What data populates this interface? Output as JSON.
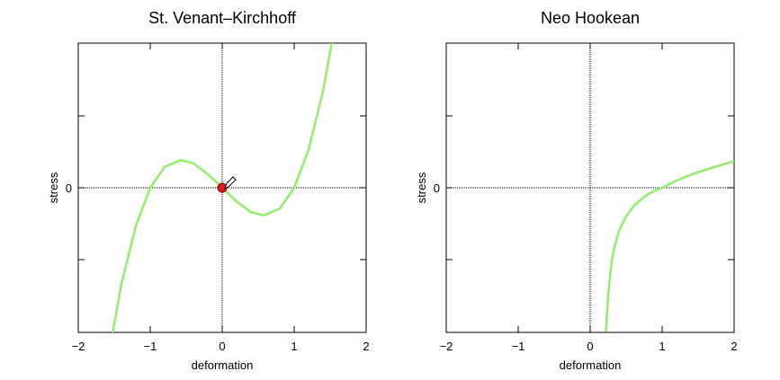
{
  "chart_data": [
    {
      "type": "line",
      "title": "St. Venant–Kirchhoff",
      "xlabel": "deformation",
      "ylabel": "stress",
      "xlim": [
        -2,
        2
      ],
      "x_ticks": [
        "−2",
        "−1",
        "0",
        "1",
        "2"
      ],
      "y_ticks": [
        "0"
      ],
      "grid": "dotted lines at x=0 and y=0",
      "series": [
        {
          "color": "#90ee6a",
          "x": [
            -1.55,
            -1.4,
            -1.2,
            -1.0,
            -0.8,
            -0.577,
            -0.4,
            -0.2,
            0.0,
            0.2,
            0.4,
            0.577,
            0.8,
            1.0,
            1.2,
            1.4,
            1.55
          ],
          "y": [
            -2.17,
            -1.34,
            -0.53,
            0.0,
            0.29,
            0.385,
            0.34,
            0.19,
            0.0,
            -0.19,
            -0.34,
            -0.385,
            -0.29,
            0.0,
            0.53,
            1.34,
            2.17
          ]
        }
      ],
      "marker": {
        "x": 0,
        "y": 0,
        "color": "#dd1c1c",
        "icon": "pencil-cursor-icon"
      }
    },
    {
      "type": "line",
      "title": "Neo Hookean",
      "xlabel": "deformation",
      "ylabel": "stress",
      "xlim": [
        -2,
        2
      ],
      "x_ticks": [
        "−2",
        "−1",
        "0",
        "1",
        "2"
      ],
      "y_ticks": [
        "0"
      ],
      "grid": "dotted lines at x=0 and y=0",
      "series": [
        {
          "color": "#90ee6a",
          "x": [
            0.22,
            0.25,
            0.3,
            0.35,
            0.4,
            0.5,
            0.6,
            0.7,
            0.8,
            0.9,
            1.0,
            1.2,
            1.4,
            1.6,
            1.8,
            2.0
          ],
          "y": [
            -2.0,
            -1.49,
            -1.01,
            -0.78,
            -0.6,
            -0.4,
            -0.26,
            -0.17,
            -0.09,
            -0.04,
            0.0,
            0.1,
            0.18,
            0.25,
            0.31,
            0.37
          ]
        }
      ]
    }
  ]
}
